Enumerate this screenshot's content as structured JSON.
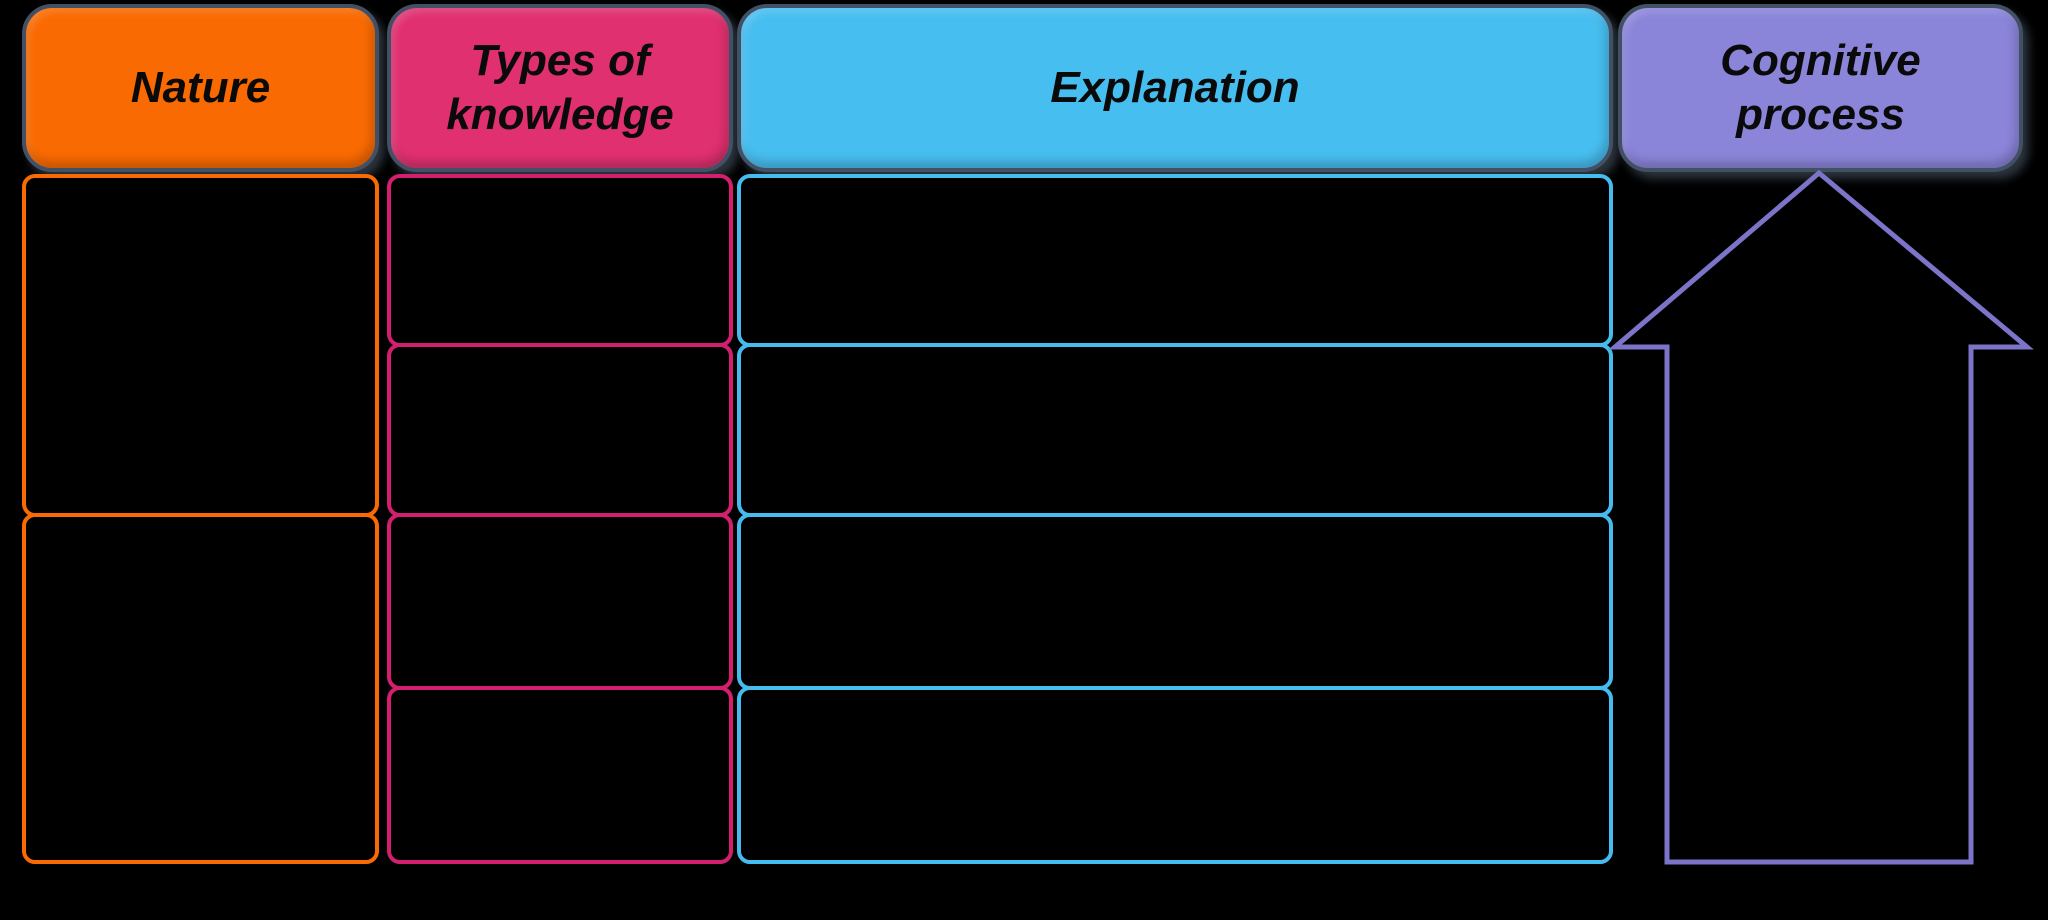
{
  "diagram": {
    "background": "#000000",
    "header_outline_color": "#415064",
    "headers": [
      {
        "id": "nature",
        "label": "Nature",
        "fill": "#F96A02"
      },
      {
        "id": "types-of-knowledge",
        "label": "Types of knowledge",
        "fill": "#E0306F"
      },
      {
        "id": "explanation",
        "label": "Explanation",
        "fill": "#47BEF0"
      },
      {
        "id": "cognitive-process",
        "label": "Cognitive process",
        "fill": "#8B85DA"
      }
    ],
    "grid": {
      "cell_fill": "#000000",
      "nature_row_count": 2,
      "types_row_count": 4,
      "explanation_row_count": 4,
      "border_colors": {
        "nature": "#F96A02",
        "types": "#D2206E",
        "explanation": "#45BCEE"
      },
      "cells_empty": true
    },
    "arrow": {
      "shape": "block-arrow-up",
      "outline_color": "#7B74C9"
    }
  }
}
